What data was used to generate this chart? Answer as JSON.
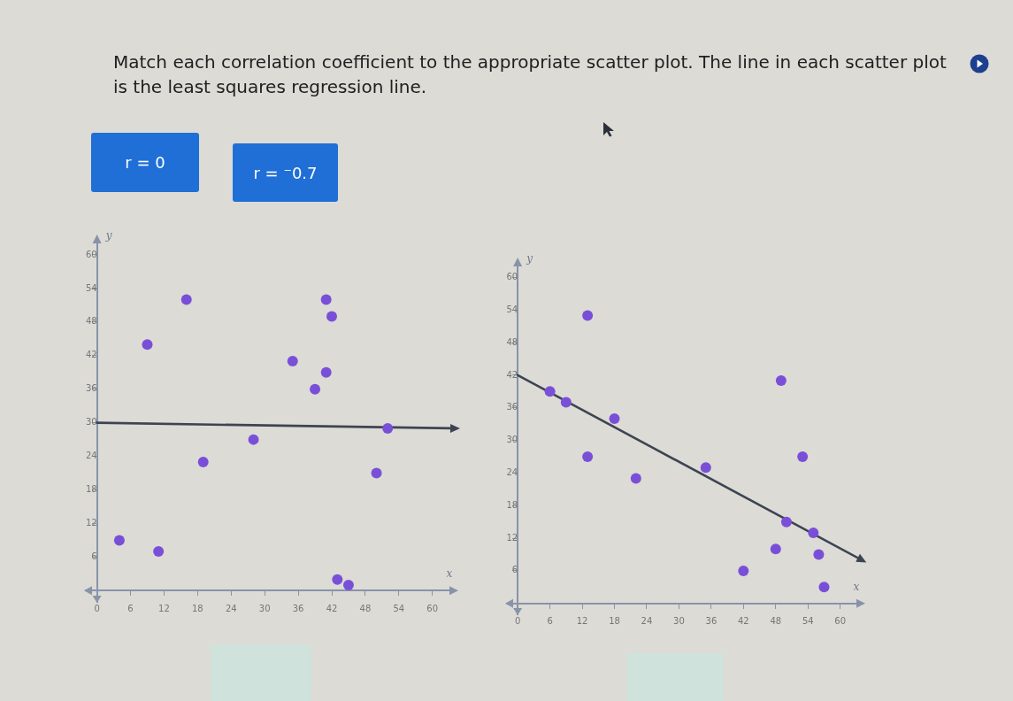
{
  "chart_data": [
    {
      "type": "other",
      "title": "Match each correlation coefficient to the appropriate scatter plot. The line in each scatter plot is the least squares regression line.",
      "annotations": [
        "r = 0",
        "r = ⁻0.7"
      ]
    },
    {
      "type": "scatter",
      "xlabel": "x",
      "ylabel": "y",
      "xlim": [
        -2,
        64
      ],
      "ylim": [
        -2,
        63
      ],
      "xticks": [
        0,
        6,
        12,
        18,
        24,
        30,
        36,
        42,
        48,
        54,
        60
      ],
      "yticks": [
        6,
        12,
        18,
        24,
        30,
        36,
        42,
        48,
        54,
        60
      ],
      "grid": false,
      "series": [
        {
          "color": "#7a4fd8",
          "marker": "circle",
          "x": [
            16,
            41,
            42,
            9,
            35,
            41,
            39,
            28,
            52,
            19,
            50,
            4,
            11,
            43,
            45
          ],
          "values": [
            52,
            52,
            49,
            44,
            41,
            39,
            36,
            27,
            29,
            23,
            21,
            9,
            7,
            2,
            1
          ]
        },
        {
          "type": "line",
          "color": "#3d4452",
          "x": [
            0,
            64
          ],
          "values": [
            30,
            29
          ]
        }
      ]
    },
    {
      "type": "scatter",
      "xlabel": "x",
      "ylabel": "y",
      "xlim": [
        -2,
        64
      ],
      "ylim": [
        -2,
        63
      ],
      "xticks": [
        0,
        6,
        12,
        18,
        24,
        30,
        36,
        42,
        48,
        54,
        60
      ],
      "yticks": [
        6,
        12,
        18,
        24,
        30,
        36,
        42,
        48,
        54,
        60
      ],
      "grid": false,
      "series": [
        {
          "color": "#7a4fd8",
          "marker": "circle",
          "x": [
            13,
            49,
            6,
            9,
            18,
            13,
            53,
            22,
            35,
            50,
            55,
            48,
            56,
            42,
            57
          ],
          "values": [
            53,
            41,
            39,
            37,
            34,
            27,
            27,
            23,
            25,
            15,
            13,
            10,
            9,
            6,
            3
          ]
        },
        {
          "type": "line",
          "color": "#3d4452",
          "x": [
            0,
            64
          ],
          "values": [
            42,
            8
          ]
        }
      ]
    }
  ]
}
